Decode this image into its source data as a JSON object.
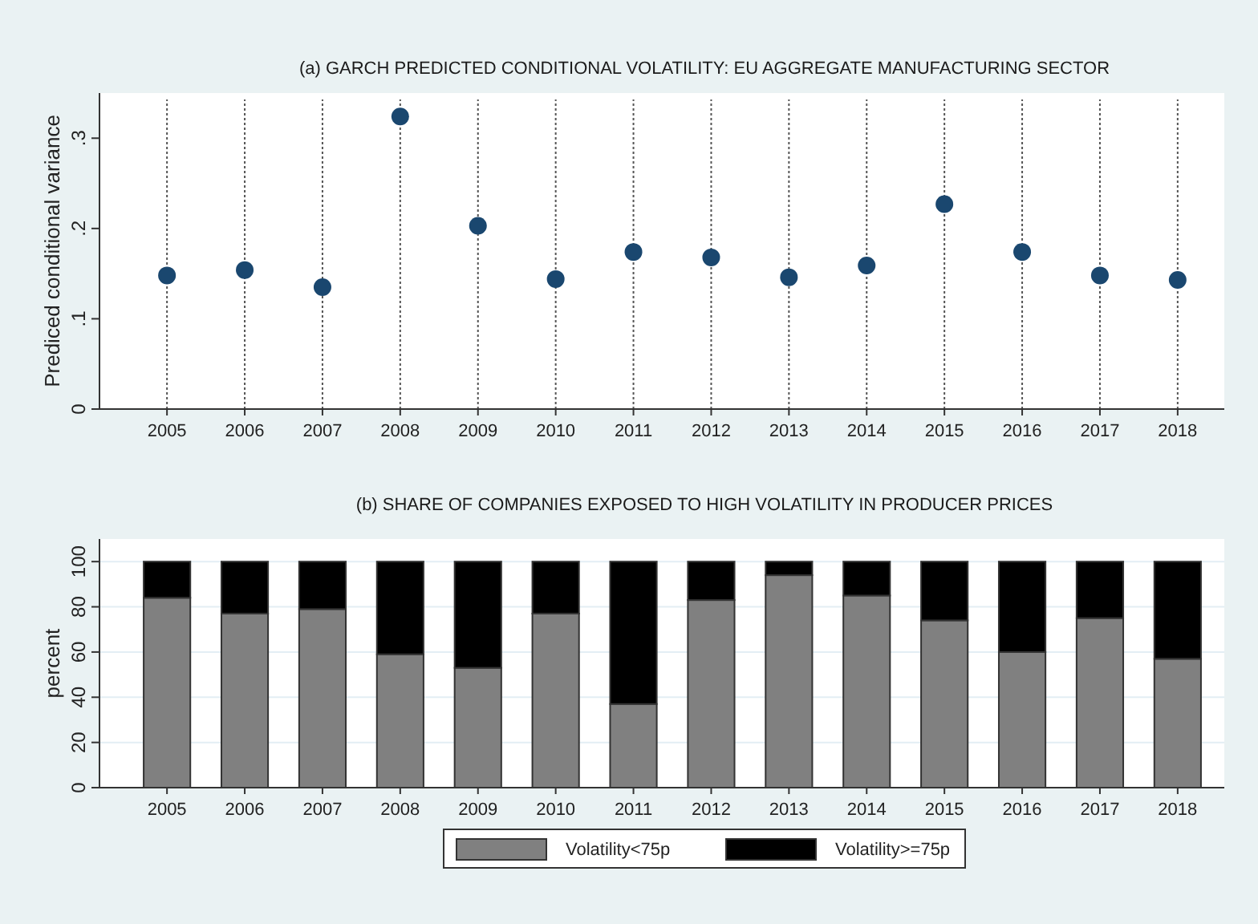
{
  "chart_data": [
    {
      "type": "scatter",
      "title": "(a) GARCH PREDICTED CONDITIONAL VOLATILITY: EU AGGREGATE MANUFACTURING SECTOR",
      "ylabel": "Prediced conditional variance",
      "categories": [
        "2005",
        "2006",
        "2007",
        "2008",
        "2009",
        "2010",
        "2011",
        "2012",
        "2013",
        "2014",
        "2015",
        "2016",
        "2017",
        "2018"
      ],
      "values": [
        0.148,
        0.154,
        0.135,
        0.324,
        0.203,
        0.144,
        0.174,
        0.168,
        0.146,
        0.159,
        0.227,
        0.174,
        0.148,
        0.143
      ],
      "color": "#1a476f",
      "marker": "circle",
      "ylim": [
        0,
        0.35
      ],
      "yticks": [
        0,
        {
          "value": 0.1,
          "label": ".1"
        },
        {
          "value": 0.2,
          "label": ".2"
        },
        {
          "value": 0.3,
          "label": ".3"
        }
      ],
      "grid": "x",
      "legend": false
    },
    {
      "type": "bar",
      "stacked": true,
      "title": "(b) SHARE OF COMPANIES EXPOSED TO HIGH VOLATILITY IN PRODUCER PRICES",
      "ylabel": "percent",
      "categories": [
        "2005",
        "2006",
        "2007",
        "2008",
        "2009",
        "2010",
        "2011",
        "2012",
        "2013",
        "2014",
        "2015",
        "2016",
        "2017",
        "2018"
      ],
      "series": [
        {
          "name": "Volatility<75p",
          "color": "#808080",
          "values": [
            84,
            77,
            79,
            59,
            53,
            77,
            37,
            83,
            94,
            85,
            74,
            60,
            75,
            57
          ]
        },
        {
          "name": "Volatility>=75p",
          "color": "#000000",
          "values": [
            16,
            23,
            21,
            41,
            47,
            23,
            63,
            17,
            6,
            15,
            26,
            40,
            25,
            43
          ]
        }
      ],
      "ylim": [
        0,
        110
      ],
      "yticks": [
        0,
        20,
        40,
        60,
        80,
        100
      ],
      "grid": "y",
      "legend": "bottom"
    }
  ]
}
